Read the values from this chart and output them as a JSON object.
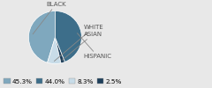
{
  "labels": [
    "BLACK",
    "WHITE",
    "ASIAN",
    "HISPANIC"
  ],
  "values": [
    45.3,
    8.3,
    2.5,
    44.0
  ],
  "colors": [
    "#7fa8be",
    "#c8dce8",
    "#1e3f5a",
    "#3d6e8a"
  ],
  "legend_labels": [
    "45.3%",
    "44.0%",
    "8.3%",
    "2.5%"
  ],
  "legend_colors": [
    "#7fa8be",
    "#3d6e8a",
    "#c8dce8",
    "#1e3f5a"
  ],
  "startangle": 90,
  "label_fontsize": 5.0,
  "legend_fontsize": 5.2,
  "bg_color": "#e8e8e8"
}
